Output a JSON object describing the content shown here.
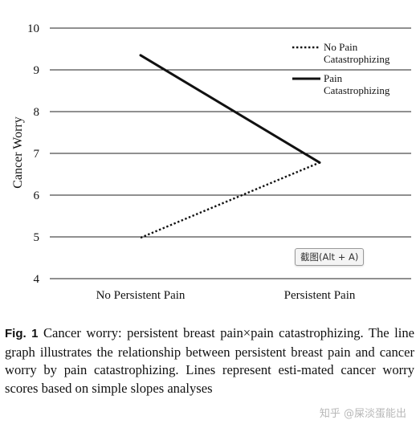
{
  "chart_data": {
    "type": "line",
    "categories": [
      "No Persistent Pain",
      "Persistent Pain"
    ],
    "series": [
      {
        "name": "No Pain\nCatastrophizing",
        "values": [
          4.98,
          6.78
        ],
        "style": "dotted",
        "color": "#111111"
      },
      {
        "name": "Pain\nCatastrophizing",
        "values": [
          9.35,
          6.78
        ],
        "style": "solid",
        "color": "#111111"
      }
    ],
    "ylabel": "Cancer Worry",
    "xlabel": "",
    "ylim": [
      4,
      10
    ],
    "yticks": [
      4,
      5,
      6,
      7,
      8,
      9,
      10
    ],
    "grid": "horizontal",
    "legend_position": "top-right"
  },
  "tooltip": {
    "text": "截图(Alt + A)"
  },
  "caption": {
    "label": "Fig. 1",
    "text": "Cancer worry: persistent breast pain×pain catastrophizing. The line graph illustrates the relationship between persistent breast pain and cancer worry by pain catastrophizing. Lines represent esti-mated cancer worry scores based on simple slopes analyses"
  },
  "watermark": {
    "text": "知乎 @屎淡蛋能出"
  }
}
